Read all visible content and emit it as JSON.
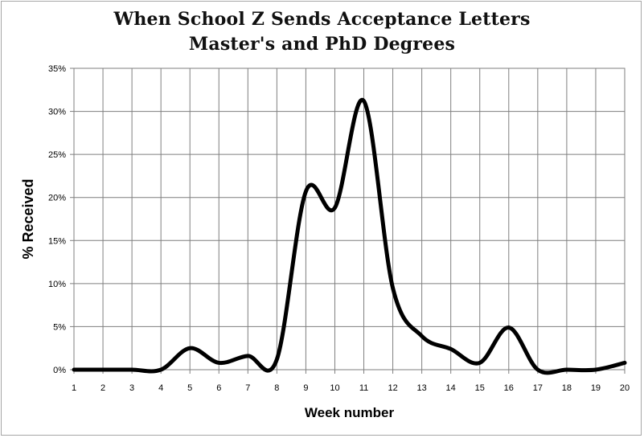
{
  "chart_data": {
    "type": "line",
    "title": "When School Z Sends Acceptance Letters",
    "subtitle": "Master's and PhD Degrees",
    "xlabel": "Week number",
    "ylabel": "% Received",
    "x": [
      1,
      2,
      3,
      4,
      5,
      6,
      7,
      8,
      9,
      10,
      11,
      12,
      13,
      14,
      15,
      16,
      17,
      18,
      19,
      20
    ],
    "series": [
      {
        "name": "",
        "values": [
          0,
          0,
          0,
          0,
          2.5,
          0.8,
          1.6,
          1.2,
          20.7,
          18.8,
          31.2,
          9.5,
          3.9,
          2.4,
          0.8,
          4.9,
          0,
          0,
          0,
          0.8
        ]
      }
    ],
    "xlim": [
      1,
      20
    ],
    "ylim": [
      0,
      35
    ],
    "ytick_values": [
      0,
      5,
      10,
      15,
      20,
      25,
      30,
      35
    ],
    "ytick_labels": [
      "0%",
      "5%",
      "10%",
      "15%",
      "20%",
      "25%",
      "30%",
      "35%"
    ],
    "xtick_labels": [
      "1",
      "2",
      "3",
      "4",
      "5",
      "6",
      "7",
      "8",
      "9",
      "10",
      "11",
      "12",
      "13",
      "14",
      "15",
      "16",
      "17",
      "18",
      "19",
      "20"
    ],
    "grid": true,
    "line_color": "#000000",
    "grid_color": "#7f7f7f"
  }
}
